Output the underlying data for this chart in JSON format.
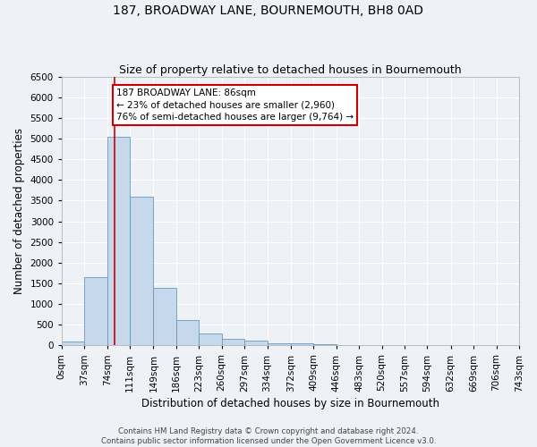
{
  "title": "187, BROADWAY LANE, BOURNEMOUTH, BH8 0AD",
  "subtitle": "Size of property relative to detached houses in Bournemouth",
  "xlabel": "Distribution of detached houses by size in Bournemouth",
  "ylabel": "Number of detached properties",
  "bin_edges": [
    0,
    37,
    74,
    111,
    149,
    186,
    223,
    260,
    297,
    334,
    372,
    409,
    446,
    483,
    520,
    557,
    594,
    632,
    669,
    706,
    743
  ],
  "bar_heights": [
    100,
    1650,
    5050,
    3600,
    1400,
    620,
    290,
    160,
    110,
    60,
    50,
    30,
    0,
    0,
    0,
    0,
    0,
    0,
    0,
    0
  ],
  "bar_color": "#c6d9ec",
  "bar_edge_color": "#6699bb",
  "property_sqm": 86,
  "red_line_color": "#cc0000",
  "annotation_text": "187 BROADWAY LANE: 86sqm\n← 23% of detached houses are smaller (2,960)\n76% of semi-detached houses are larger (9,764) →",
  "annotation_box_color": "#ffffff",
  "annotation_box_edge": "#cc0000",
  "ylim": [
    0,
    6500
  ],
  "yticks": [
    0,
    500,
    1000,
    1500,
    2000,
    2500,
    3000,
    3500,
    4000,
    4500,
    5000,
    5500,
    6000,
    6500
  ],
  "footer_line1": "Contains HM Land Registry data © Crown copyright and database right 2024.",
  "footer_line2": "Contains public sector information licensed under the Open Government Licence v3.0.",
  "bg_color": "#eef2f7",
  "grid_color": "#ffffff",
  "title_fontsize": 10,
  "subtitle_fontsize": 9,
  "axis_label_fontsize": 8.5,
  "tick_fontsize": 7.5,
  "annotation_fontsize": 7.5,
  "footer_fontsize": 6.2
}
